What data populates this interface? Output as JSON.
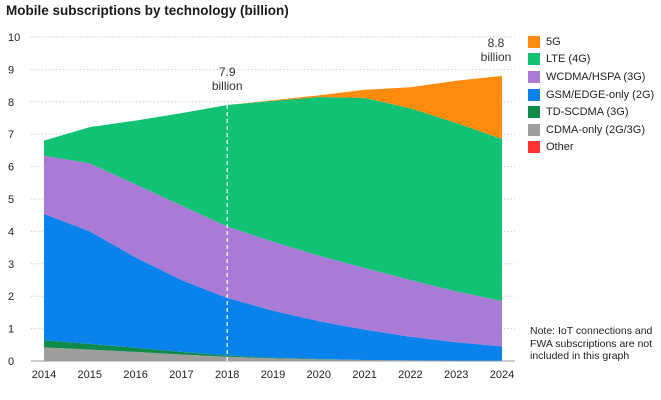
{
  "chart_data": {
    "type": "area",
    "title": "Mobile subscriptions by technology (billion)",
    "xlabel": "",
    "ylabel": "",
    "ylim": [
      0,
      10
    ],
    "yticks": [
      0,
      1,
      2,
      3,
      4,
      5,
      6,
      7,
      8,
      9,
      10
    ],
    "x": [
      2014,
      2015,
      2016,
      2017,
      2018,
      2019,
      2020,
      2021,
      2022,
      2023,
      2024
    ],
    "stacked": true,
    "grid": true,
    "legend_position": "right",
    "series": [
      {
        "name": "CDMA-only (2G/3G)",
        "color": "#9e9e9e",
        "values": [
          0.42,
          0.35,
          0.28,
          0.2,
          0.13,
          0.08,
          0.05,
          0.03,
          0.02,
          0.01,
          0.01
        ]
      },
      {
        "name": "TD-SCDMA (3G)",
        "color": "#0f8a4a",
        "values": [
          0.22,
          0.18,
          0.13,
          0.08,
          0.04,
          0.02,
          0.01,
          0.0,
          0.0,
          0.0,
          0.0
        ]
      },
      {
        "name": "GSM/EDGE-only (2G)",
        "color": "#0a82eb",
        "values": [
          3.9,
          3.47,
          2.79,
          2.22,
          1.78,
          1.45,
          1.17,
          0.94,
          0.73,
          0.57,
          0.44
        ]
      },
      {
        "name": "WCDMA/HSPA (3G)",
        "color": "#a97bd6",
        "values": [
          1.8,
          2.1,
          2.25,
          2.3,
          2.2,
          2.13,
          2.02,
          1.9,
          1.75,
          1.57,
          1.4
        ]
      },
      {
        "name": "LTE (4G)",
        "color": "#11c274",
        "values": [
          0.46,
          1.12,
          1.97,
          2.85,
          3.75,
          4.35,
          4.9,
          5.25,
          5.3,
          5.2,
          5.0
        ]
      },
      {
        "name": "5G",
        "color": "#ff8b0e",
        "values": [
          0,
          0,
          0,
          0,
          0,
          0.02,
          0.05,
          0.25,
          0.65,
          1.3,
          1.95
        ]
      },
      {
        "name": "Other",
        "color": "#ff3232",
        "values": [
          0,
          0,
          0,
          0,
          0,
          0,
          0,
          0,
          0,
          0,
          0
        ]
      }
    ],
    "annotations": [
      {
        "line1": "7.9",
        "line2": "billion",
        "x": 2018,
        "value": 7.9,
        "dashed_line": true
      },
      {
        "line1": "8.8",
        "line2": "billion",
        "x": 2024,
        "value": 8.8,
        "dashed_line": false
      }
    ],
    "note": "Note: IoT connections and FWA subscriptions are not included in this graph"
  }
}
